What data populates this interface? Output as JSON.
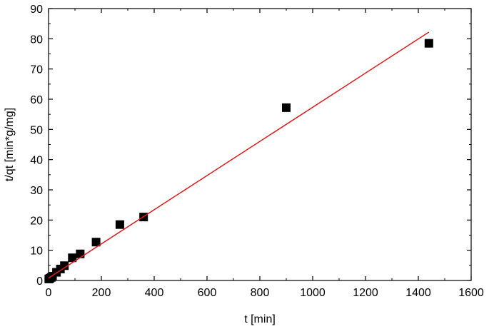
{
  "chart_data": {
    "type": "scatter",
    "title": "",
    "xlabel": "t [min]",
    "ylabel": "t/qt [min*g/mg]",
    "xlim": [
      0,
      1600
    ],
    "ylim": [
      0,
      90
    ],
    "xticks": [
      0,
      200,
      400,
      600,
      800,
      1000,
      1200,
      1400,
      1600
    ],
    "yticks": [
      0,
      10,
      20,
      30,
      40,
      50,
      60,
      70,
      80,
      90
    ],
    "x_tick_labels": [
      "0",
      "200",
      "400",
      "600",
      "800",
      "1000",
      "1200",
      "1400",
      "1600"
    ],
    "y_tick_labels": [
      "0",
      "10",
      "20",
      "30",
      "40",
      "50",
      "60",
      "70",
      "80",
      "90"
    ],
    "grid": false,
    "legend": "none",
    "series": [
      {
        "type": "scatter",
        "marker": "square",
        "color": "#000000",
        "points": [
          {
            "x": 1,
            "y": 0.5
          },
          {
            "x": 5,
            "y": 0.7
          },
          {
            "x": 10,
            "y": 1.0
          },
          {
            "x": 15,
            "y": 1.4
          },
          {
            "x": 30,
            "y": 2.7
          },
          {
            "x": 45,
            "y": 3.8
          },
          {
            "x": 60,
            "y": 4.9
          },
          {
            "x": 90,
            "y": 7.5
          },
          {
            "x": 120,
            "y": 8.8
          },
          {
            "x": 180,
            "y": 12.7
          },
          {
            "x": 270,
            "y": 18.5
          },
          {
            "x": 360,
            "y": 21.0
          },
          {
            "x": 900,
            "y": 57.2
          },
          {
            "x": 1440,
            "y": 78.5
          }
        ]
      },
      {
        "type": "line",
        "color": "#dd1c1c",
        "points": [
          {
            "x": 0,
            "y": 0.8
          },
          {
            "x": 1440,
            "y": 82.2
          }
        ]
      }
    ]
  }
}
